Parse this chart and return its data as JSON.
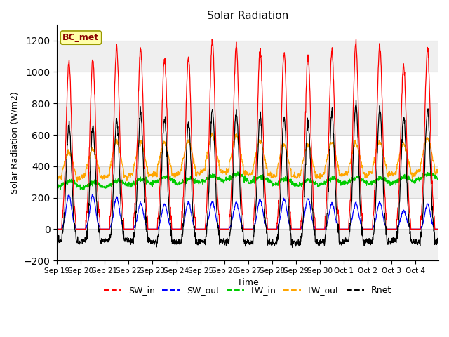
{
  "title": "Solar Radiation",
  "xlabel": "Time",
  "ylabel": "Solar Radiation (W/m2)",
  "ylim": [
    -200,
    1300
  ],
  "yticks": [
    -200,
    0,
    200,
    400,
    600,
    800,
    1000,
    1200
  ],
  "station_label": "BC_met",
  "colors": {
    "SW_in": "#FF0000",
    "SW_out": "#0000FF",
    "LW_in": "#00CC00",
    "LW_out": "#FFA500",
    "Rnet": "#000000"
  },
  "x_tick_labels": [
    "Sep 19",
    "Sep 20",
    "Sep 21",
    "Sep 22",
    "Sep 23",
    "Sep 24",
    "Sep 25",
    "Sep 26",
    "Sep 27",
    "Sep 28",
    "Sep 29",
    "Sep 30",
    "Oct 1",
    "Oct 2",
    "Oct 3",
    "Oct 4"
  ],
  "n_days": 16,
  "dt": 0.25,
  "SW_in_peaks": [
    1060,
    1080,
    1150,
    1150,
    1090,
    1090,
    1200,
    1165,
    1130,
    1120,
    1100,
    1130,
    1175,
    1175,
    1040,
    1140
  ],
  "SW_out_peaks": [
    215,
    215,
    200,
    165,
    160,
    170,
    175,
    170,
    185,
    190,
    195,
    165,
    165,
    170,
    120,
    160
  ],
  "LW_in_base": [
    290,
    280,
    290,
    300,
    315,
    305,
    320,
    330,
    315,
    300,
    295,
    305,
    310,
    305,
    315,
    335
  ],
  "LW_out_base": [
    330,
    340,
    345,
    350,
    355,
    360,
    375,
    370,
    355,
    345,
    340,
    350,
    355,
    360,
    355,
    375
  ],
  "LW_out_day_bump": [
    150,
    160,
    210,
    200,
    190,
    195,
    220,
    215,
    200,
    185,
    190,
    195,
    185,
    190,
    175,
    195
  ],
  "night_Rnet": [
    -80,
    -75,
    -70,
    -75,
    -80,
    -85,
    -75,
    -80,
    -85,
    -90,
    -85,
    -80,
    -75,
    -80,
    -75,
    -80
  ],
  "background_color": "#FFFFFF",
  "grid_color": "#D8D8D8"
}
